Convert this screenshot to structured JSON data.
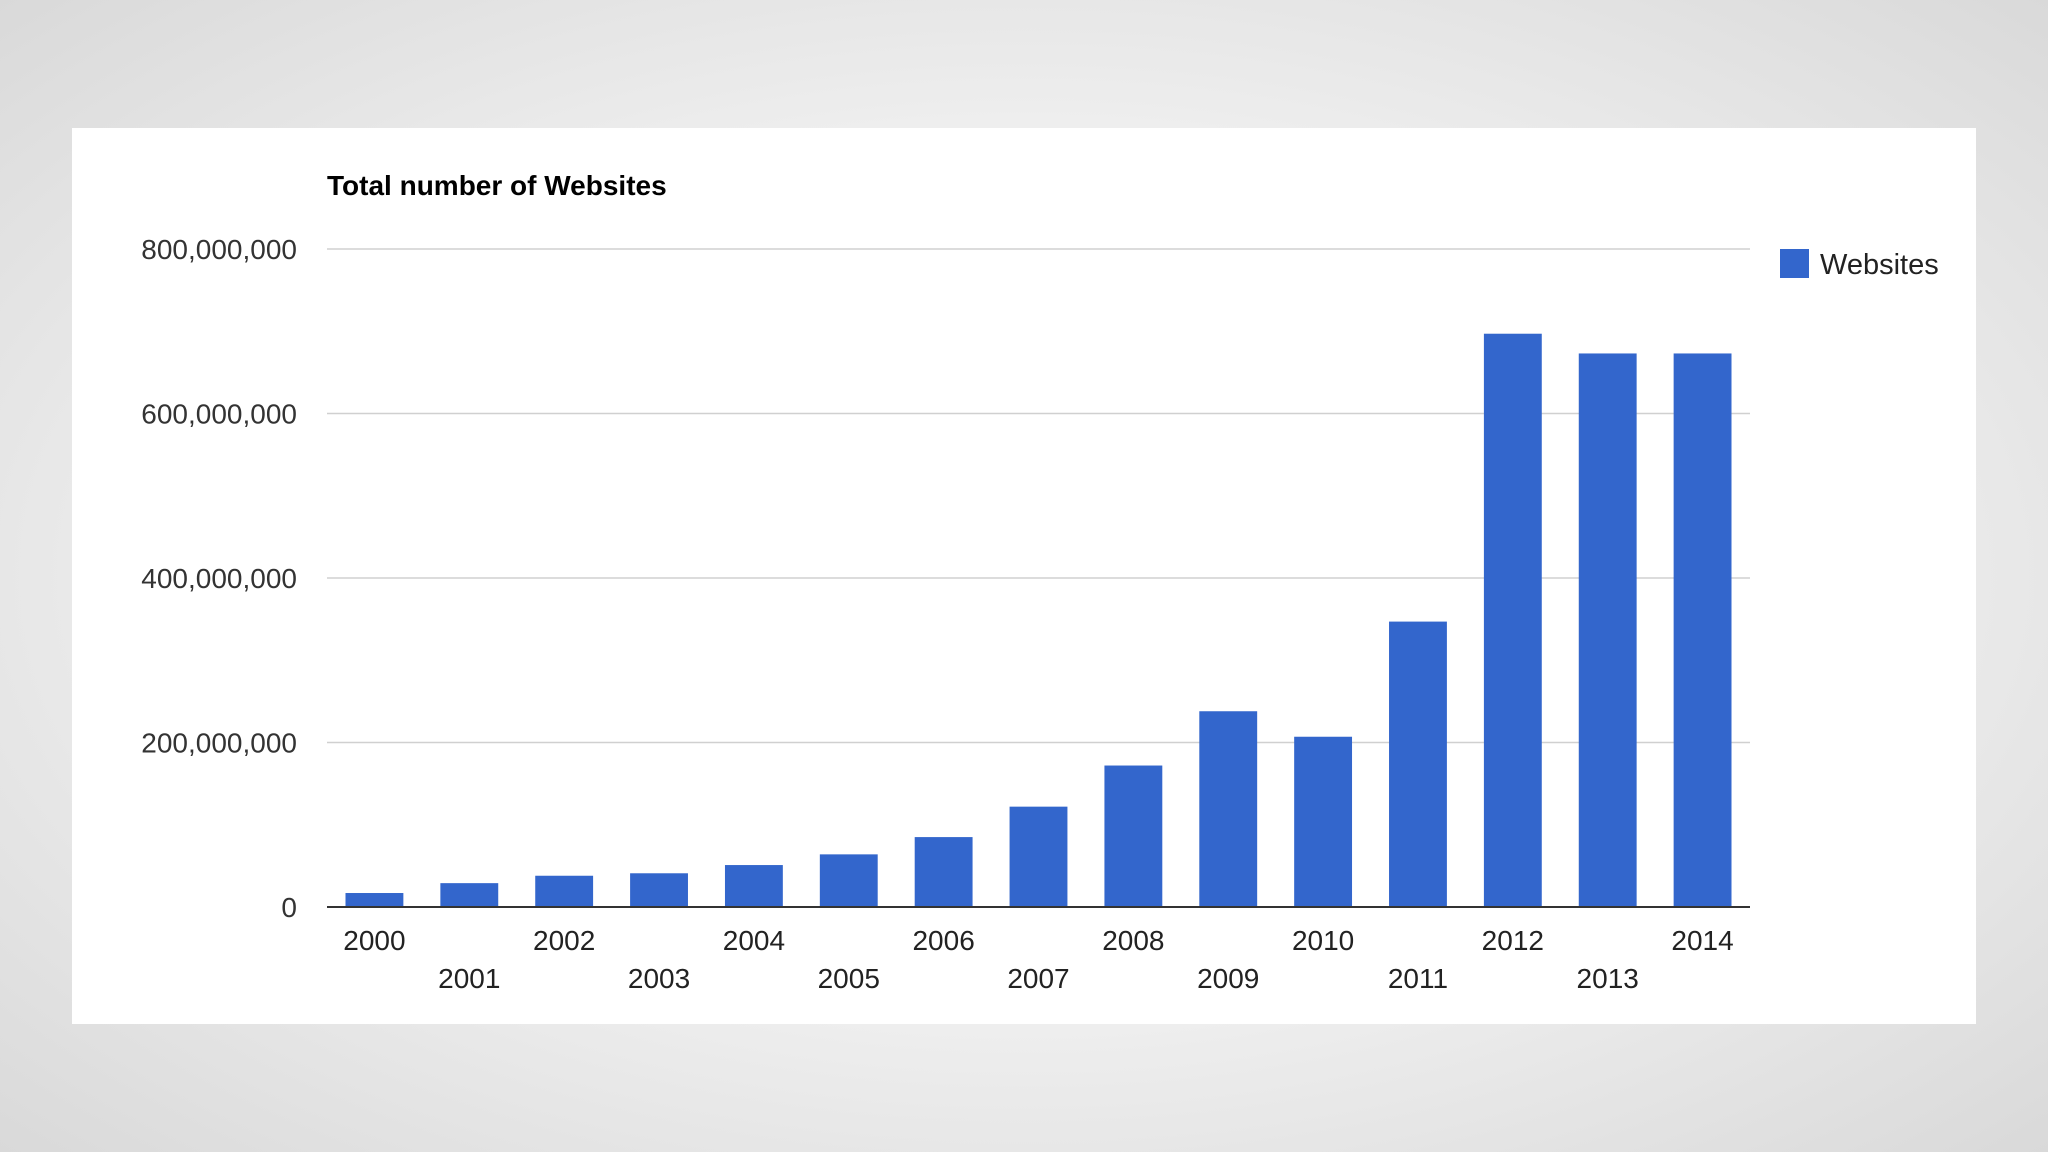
{
  "chart_data": {
    "type": "bar",
    "title": "Total number of Websites",
    "xlabel": "",
    "ylabel": "",
    "categories": [
      "2000",
      "2001",
      "2002",
      "2003",
      "2004",
      "2005",
      "2006",
      "2007",
      "2008",
      "2009",
      "2010",
      "2011",
      "2012",
      "2013",
      "2014"
    ],
    "series": [
      {
        "name": "Websites",
        "color": "#3366cc",
        "values": [
          17000000,
          29000000,
          38000000,
          41000000,
          51000000,
          64000000,
          85000000,
          122000000,
          172000000,
          238000000,
          207000000,
          347000000,
          697000000,
          673000000,
          673000000
        ]
      }
    ],
    "ylim": [
      0,
      800000000
    ],
    "yticks": [
      0,
      200000000,
      400000000,
      600000000,
      800000000
    ],
    "ytick_labels": [
      "0",
      "200,000,000",
      "400,000,000",
      "600,000,000",
      "800,000,000"
    ],
    "grid": true,
    "legend": {
      "position": "right",
      "label": "Websites"
    }
  }
}
